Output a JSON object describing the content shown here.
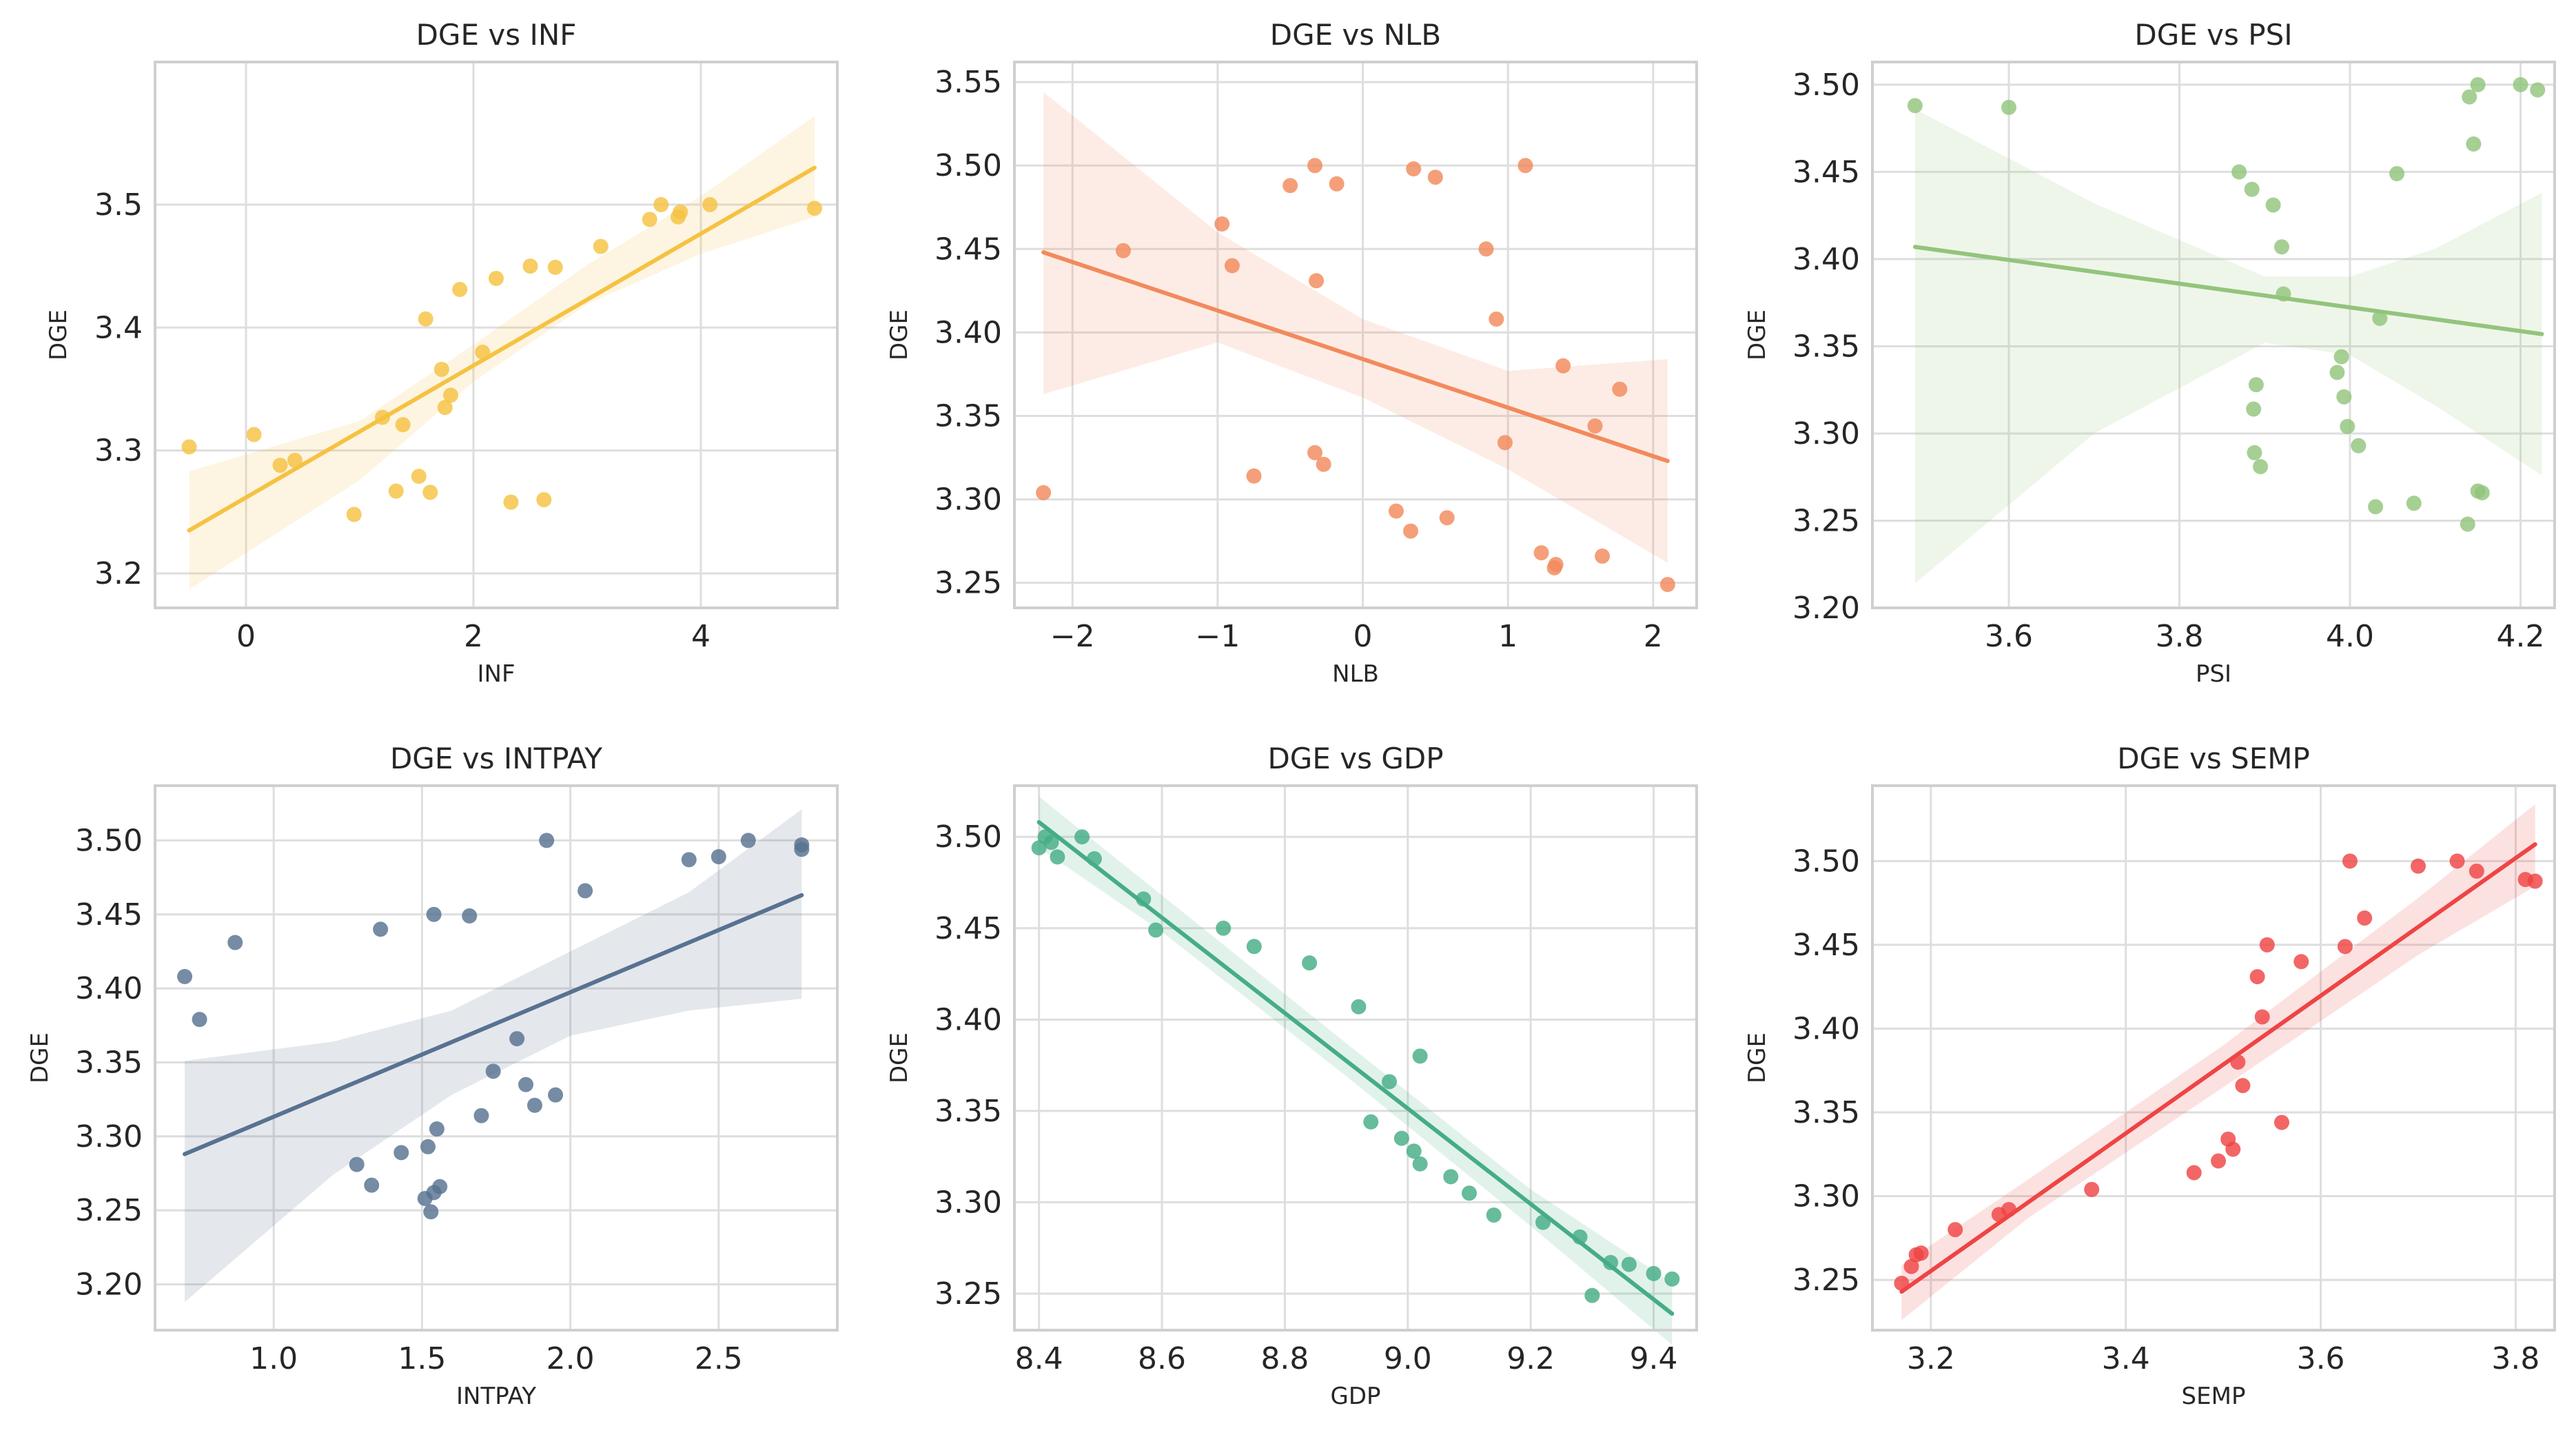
{
  "figure": {
    "ylabel": "DGE"
  },
  "chart_data": [
    {
      "type": "scatter",
      "title": "DGE vs INF",
      "xlabel": "INF",
      "ylabel": "DGE",
      "color": "#f5c242",
      "xlim": [
        -0.8,
        5.2
      ],
      "ylim": [
        3.172,
        3.616
      ],
      "xticks": [
        0,
        2,
        4
      ],
      "xtick_labels": [
        "0",
        "2",
        "4"
      ],
      "yticks": [
        3.2,
        3.3,
        3.4,
        3.5
      ],
      "ytick_labels": [
        "3.2",
        "3.3",
        "3.4",
        "3.5"
      ],
      "grid": true,
      "points": [
        [
          -0.5,
          3.303
        ],
        [
          0.07,
          3.313
        ],
        [
          0.3,
          3.288
        ],
        [
          0.43,
          3.292
        ],
        [
          0.95,
          3.248
        ],
        [
          1.2,
          3.327
        ],
        [
          1.32,
          3.267
        ],
        [
          1.38,
          3.321
        ],
        [
          1.52,
          3.279
        ],
        [
          1.58,
          3.407
        ],
        [
          1.62,
          3.266
        ],
        [
          1.72,
          3.366
        ],
        [
          1.75,
          3.335
        ],
        [
          1.8,
          3.345
        ],
        [
          1.88,
          3.431
        ],
        [
          2.08,
          3.38
        ],
        [
          2.2,
          3.44
        ],
        [
          2.33,
          3.258
        ],
        [
          2.5,
          3.45
        ],
        [
          2.62,
          3.26
        ],
        [
          2.72,
          3.449
        ],
        [
          3.12,
          3.466
        ],
        [
          3.55,
          3.488
        ],
        [
          3.65,
          3.5
        ],
        [
          3.8,
          3.49
        ],
        [
          3.82,
          3.494
        ],
        [
          4.08,
          3.5
        ],
        [
          5.0,
          3.497
        ]
      ],
      "regression": {
        "x0": -0.5,
        "y0": 3.235,
        "x1": 5.0,
        "y1": 3.53
      },
      "ci_lower": [
        [
          -0.5,
          3.187
        ],
        [
          1.0,
          3.276
        ],
        [
          2.0,
          3.356
        ],
        [
          3.0,
          3.419
        ],
        [
          4.0,
          3.46
        ],
        [
          5.0,
          3.49
        ]
      ],
      "ci_upper": [
        [
          -0.5,
          3.283
        ],
        [
          1.0,
          3.324
        ],
        [
          2.0,
          3.386
        ],
        [
          3.0,
          3.451
        ],
        [
          4.0,
          3.507
        ],
        [
          5.0,
          3.572
        ]
      ]
    },
    {
      "type": "scatter",
      "title": "DGE vs NLB",
      "xlabel": "NLB",
      "ylabel": "DGE",
      "color": "#f28a5c",
      "xlim": [
        -2.4,
        2.3
      ],
      "ylim": [
        3.235,
        3.562
      ],
      "xticks": [
        -2,
        -1,
        0,
        1,
        2
      ],
      "xtick_labels": [
        "−2",
        "−1",
        "0",
        "1",
        "2"
      ],
      "yticks": [
        3.25,
        3.3,
        3.35,
        3.4,
        3.45,
        3.5,
        3.55
      ],
      "ytick_labels": [
        "3.25",
        "3.30",
        "3.35",
        "3.40",
        "3.45",
        "3.50",
        "3.55"
      ],
      "grid": true,
      "points": [
        [
          -2.2,
          3.304
        ],
        [
          -1.65,
          3.449
        ],
        [
          -0.97,
          3.465
        ],
        [
          -0.9,
          3.44
        ],
        [
          -0.75,
          3.314
        ],
        [
          -0.5,
          3.488
        ],
        [
          -0.33,
          3.5
        ],
        [
          -0.33,
          3.328
        ],
        [
          -0.32,
          3.431
        ],
        [
          -0.27,
          3.321
        ],
        [
          -0.18,
          3.489
        ],
        [
          0.23,
          3.293
        ],
        [
          0.33,
          3.281
        ],
        [
          0.35,
          3.498
        ],
        [
          0.5,
          3.493
        ],
        [
          0.58,
          3.289
        ],
        [
          0.85,
          3.45
        ],
        [
          0.92,
          3.408
        ],
        [
          0.98,
          3.334
        ],
        [
          1.12,
          3.5
        ],
        [
          1.23,
          3.268
        ],
        [
          1.32,
          3.259
        ],
        [
          1.33,
          3.261
        ],
        [
          1.38,
          3.38
        ],
        [
          1.6,
          3.344
        ],
        [
          1.65,
          3.266
        ],
        [
          1.77,
          3.366
        ],
        [
          2.1,
          3.249
        ]
      ],
      "regression": {
        "x0": -2.2,
        "y0": 3.448,
        "x1": 2.1,
        "y1": 3.323
      },
      "ci_lower": [
        [
          -2.2,
          3.363
        ],
        [
          -1.0,
          3.394
        ],
        [
          0.0,
          3.361
        ],
        [
          1.0,
          3.318
        ],
        [
          2.1,
          3.262
        ]
      ],
      "ci_upper": [
        [
          -2.2,
          3.544
        ],
        [
          -1.0,
          3.46
        ],
        [
          0.0,
          3.408
        ],
        [
          1.0,
          3.377
        ],
        [
          2.1,
          3.384
        ]
      ]
    },
    {
      "type": "scatter",
      "title": "DGE vs PSI",
      "xlabel": "PSI",
      "ylabel": "DGE",
      "color": "#93c47d",
      "xlim": [
        3.44,
        4.24
      ],
      "ylim": [
        3.2,
        3.513
      ],
      "xticks": [
        3.6,
        3.8,
        4.0,
        4.2
      ],
      "xtick_labels": [
        "3.6",
        "3.8",
        "4.0",
        "4.2"
      ],
      "yticks": [
        3.2,
        3.25,
        3.3,
        3.35,
        3.4,
        3.45,
        3.5
      ],
      "ytick_labels": [
        "3.20",
        "3.25",
        "3.30",
        "3.35",
        "3.40",
        "3.45",
        "3.50"
      ],
      "grid": true,
      "points": [
        [
          3.49,
          3.488
        ],
        [
          3.6,
          3.487
        ],
        [
          3.87,
          3.45
        ],
        [
          3.885,
          3.44
        ],
        [
          3.887,
          3.314
        ],
        [
          3.888,
          3.289
        ],
        [
          3.89,
          3.328
        ],
        [
          3.895,
          3.281
        ],
        [
          3.91,
          3.431
        ],
        [
          3.92,
          3.407
        ],
        [
          3.922,
          3.38
        ],
        [
          3.985,
          3.335
        ],
        [
          3.99,
          3.344
        ],
        [
          3.993,
          3.321
        ],
        [
          3.997,
          3.304
        ],
        [
          4.01,
          3.293
        ],
        [
          4.03,
          3.258
        ],
        [
          4.035,
          3.366
        ],
        [
          4.055,
          3.449
        ],
        [
          4.075,
          3.26
        ],
        [
          4.14,
          3.493
        ],
        [
          4.145,
          3.466
        ],
        [
          4.15,
          3.5
        ],
        [
          4.15,
          3.267
        ],
        [
          4.155,
          3.266
        ],
        [
          4.2,
          3.5
        ],
        [
          4.22,
          3.497
        ],
        [
          4.138,
          3.248
        ]
      ],
      "regression": {
        "x0": 3.49,
        "y0": 3.407,
        "x1": 4.225,
        "y1": 3.357
      },
      "ci_lower": [
        [
          3.49,
          3.214
        ],
        [
          3.7,
          3.3
        ],
        [
          3.9,
          3.352
        ],
        [
          4.0,
          3.345
        ],
        [
          4.1,
          3.316
        ],
        [
          4.225,
          3.276
        ]
      ],
      "ci_upper": [
        [
          3.49,
          3.486
        ],
        [
          3.7,
          3.432
        ],
        [
          3.9,
          3.39
        ],
        [
          4.0,
          3.39
        ],
        [
          4.1,
          3.406
        ],
        [
          4.225,
          3.438
        ]
      ]
    },
    {
      "type": "scatter",
      "title": "DGE vs INTPAY",
      "xlabel": "INTPAY",
      "ylabel": "DGE",
      "color": "#587290",
      "xlim": [
        0.6,
        2.9
      ],
      "ylim": [
        3.169,
        3.537
      ],
      "xticks": [
        1.0,
        1.5,
        2.0,
        2.5
      ],
      "xtick_labels": [
        "1.0",
        "1.5",
        "2.0",
        "2.5"
      ],
      "yticks": [
        3.2,
        3.25,
        3.3,
        3.35,
        3.4,
        3.45,
        3.5
      ],
      "ytick_labels": [
        "3.20",
        "3.25",
        "3.30",
        "3.35",
        "3.40",
        "3.45",
        "3.50"
      ],
      "grid": true,
      "points": [
        [
          0.7,
          3.408
        ],
        [
          0.75,
          3.379
        ],
        [
          0.87,
          3.431
        ],
        [
          1.28,
          3.281
        ],
        [
          1.33,
          3.267
        ],
        [
          1.36,
          3.44
        ],
        [
          1.43,
          3.289
        ],
        [
          1.51,
          3.258
        ],
        [
          1.52,
          3.293
        ],
        [
          1.53,
          3.249
        ],
        [
          1.54,
          3.45
        ],
        [
          1.54,
          3.262
        ],
        [
          1.55,
          3.305
        ],
        [
          1.56,
          3.266
        ],
        [
          1.66,
          3.449
        ],
        [
          1.7,
          3.314
        ],
        [
          1.74,
          3.344
        ],
        [
          1.82,
          3.366
        ],
        [
          1.85,
          3.335
        ],
        [
          1.88,
          3.321
        ],
        [
          1.92,
          3.5
        ],
        [
          1.95,
          3.328
        ],
        [
          2.05,
          3.466
        ],
        [
          2.4,
          3.487
        ],
        [
          2.5,
          3.489
        ],
        [
          2.6,
          3.5
        ],
        [
          2.78,
          3.497
        ],
        [
          2.78,
          3.494
        ]
      ],
      "regression": {
        "x0": 0.7,
        "y0": 3.288,
        "x1": 2.78,
        "y1": 3.463
      },
      "ci_lower": [
        [
          0.7,
          3.188
        ],
        [
          1.2,
          3.274
        ],
        [
          1.6,
          3.328
        ],
        [
          2.0,
          3.368
        ],
        [
          2.4,
          3.385
        ],
        [
          2.78,
          3.393
        ]
      ],
      "ci_upper": [
        [
          0.7,
          3.351
        ],
        [
          1.2,
          3.364
        ],
        [
          1.6,
          3.385
        ],
        [
          2.0,
          3.425
        ],
        [
          2.4,
          3.465
        ],
        [
          2.78,
          3.521
        ]
      ]
    },
    {
      "type": "scatter",
      "title": "DGE vs GDP",
      "xlabel": "GDP",
      "ylabel": "DGE",
      "color": "#45ad85",
      "xlim": [
        8.36,
        9.47
      ],
      "ylim": [
        3.23,
        3.528
      ],
      "xticks": [
        8.4,
        8.6,
        8.8,
        9.0,
        9.2,
        9.4
      ],
      "xtick_labels": [
        "8.4",
        "8.6",
        "8.8",
        "9.0",
        "9.2",
        "9.4"
      ],
      "yticks": [
        3.25,
        3.3,
        3.35,
        3.4,
        3.45,
        3.5
      ],
      "ytick_labels": [
        "3.25",
        "3.30",
        "3.35",
        "3.40",
        "3.45",
        "3.50"
      ],
      "grid": true,
      "points": [
        [
          8.4,
          3.494
        ],
        [
          8.41,
          3.5
        ],
        [
          8.42,
          3.497
        ],
        [
          8.43,
          3.489
        ],
        [
          8.47,
          3.5
        ],
        [
          8.49,
          3.488
        ],
        [
          8.57,
          3.466
        ],
        [
          8.59,
          3.449
        ],
        [
          8.7,
          3.45
        ],
        [
          8.75,
          3.44
        ],
        [
          8.84,
          3.431
        ],
        [
          8.92,
          3.407
        ],
        [
          8.94,
          3.344
        ],
        [
          8.97,
          3.366
        ],
        [
          8.99,
          3.335
        ],
        [
          9.01,
          3.328
        ],
        [
          9.02,
          3.321
        ],
        [
          9.02,
          3.38
        ],
        [
          9.07,
          3.314
        ],
        [
          9.1,
          3.305
        ],
        [
          9.14,
          3.293
        ],
        [
          9.22,
          3.289
        ],
        [
          9.28,
          3.281
        ],
        [
          9.3,
          3.249
        ],
        [
          9.33,
          3.267
        ],
        [
          9.36,
          3.266
        ],
        [
          9.4,
          3.261
        ],
        [
          9.43,
          3.258
        ]
      ],
      "regression": {
        "x0": 8.4,
        "y0": 3.508,
        "x1": 9.43,
        "y1": 3.239
      },
      "ci_lower": [
        [
          8.4,
          3.494
        ],
        [
          8.6,
          3.448
        ],
        [
          8.9,
          3.369
        ],
        [
          9.2,
          3.287
        ],
        [
          9.43,
          3.222
        ]
      ],
      "ci_upper": [
        [
          8.4,
          3.522
        ],
        [
          8.6,
          3.468
        ],
        [
          8.9,
          3.387
        ],
        [
          9.2,
          3.307
        ],
        [
          9.43,
          3.256
        ]
      ]
    },
    {
      "type": "scatter",
      "title": "DGE vs SEMP",
      "xlabel": "SEMP",
      "ylabel": "DGE",
      "color": "#ef4444",
      "xlim": [
        3.14,
        3.84
      ],
      "ylim": [
        3.22,
        3.545
      ],
      "xticks": [
        3.2,
        3.4,
        3.6,
        3.8
      ],
      "xtick_labels": [
        "3.2",
        "3.4",
        "3.6",
        "3.8"
      ],
      "yticks": [
        3.25,
        3.3,
        3.35,
        3.4,
        3.45,
        3.5
      ],
      "ytick_labels": [
        "3.25",
        "3.30",
        "3.35",
        "3.40",
        "3.45",
        "3.50"
      ],
      "grid": true,
      "points": [
        [
          3.17,
          3.248
        ],
        [
          3.18,
          3.258
        ],
        [
          3.185,
          3.265
        ],
        [
          3.19,
          3.266
        ],
        [
          3.225,
          3.28
        ],
        [
          3.27,
          3.289
        ],
        [
          3.28,
          3.292
        ],
        [
          3.365,
          3.304
        ],
        [
          3.47,
          3.314
        ],
        [
          3.495,
          3.321
        ],
        [
          3.505,
          3.334
        ],
        [
          3.51,
          3.328
        ],
        [
          3.515,
          3.38
        ],
        [
          3.52,
          3.366
        ],
        [
          3.535,
          3.431
        ],
        [
          3.54,
          3.407
        ],
        [
          3.545,
          3.45
        ],
        [
          3.56,
          3.344
        ],
        [
          3.58,
          3.44
        ],
        [
          3.625,
          3.449
        ],
        [
          3.63,
          3.5
        ],
        [
          3.645,
          3.466
        ],
        [
          3.7,
          3.497
        ],
        [
          3.74,
          3.5
        ],
        [
          3.76,
          3.494
        ],
        [
          3.81,
          3.489
        ],
        [
          3.82,
          3.488
        ]
      ],
      "regression": {
        "x0": 3.17,
        "y0": 3.243,
        "x1": 3.82,
        "y1": 3.51
      },
      "ci_lower": [
        [
          3.17,
          3.226
        ],
        [
          3.3,
          3.287
        ],
        [
          3.5,
          3.365
        ],
        [
          3.7,
          3.444
        ],
        [
          3.82,
          3.485
        ]
      ],
      "ci_upper": [
        [
          3.17,
          3.259
        ],
        [
          3.3,
          3.31
        ],
        [
          3.5,
          3.39
        ],
        [
          3.7,
          3.478
        ],
        [
          3.82,
          3.534
        ]
      ]
    }
  ]
}
